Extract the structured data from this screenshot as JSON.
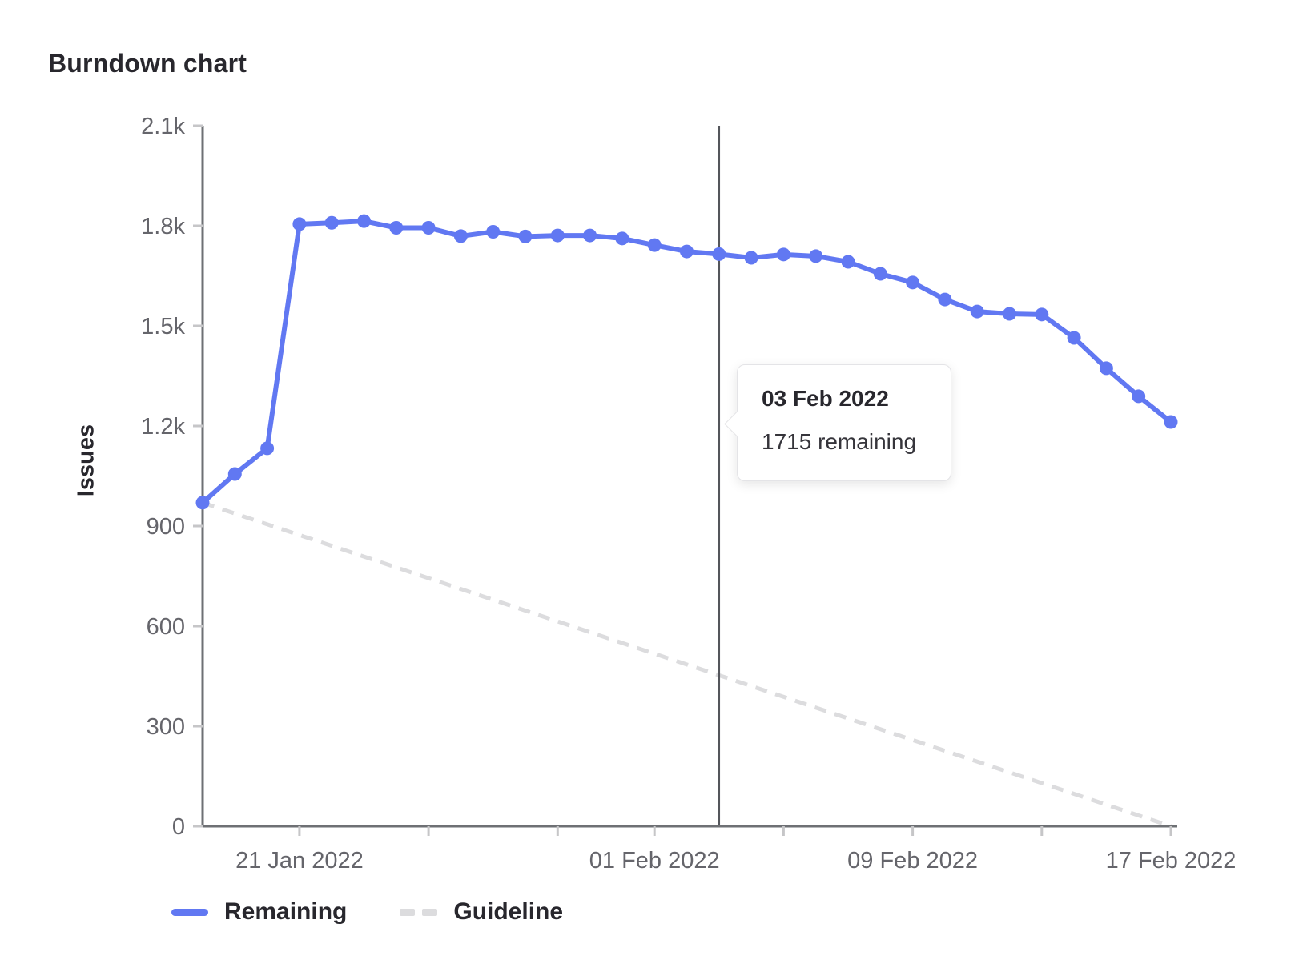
{
  "title": "Burndown chart",
  "chart_data": {
    "type": "line",
    "title": "Burndown chart",
    "xlabel": "",
    "ylabel": "Issues",
    "ylim": [
      0,
      2100
    ],
    "grid": false,
    "legend_position": "bottom",
    "ytick_values": [
      0,
      300,
      600,
      900,
      1200,
      1500,
      1800,
      2100
    ],
    "ytick_labels": [
      "0",
      "300",
      "600",
      "900",
      "1.2k",
      "1.5k",
      "1.8k",
      "2.1k"
    ],
    "x": [
      "18 Jan",
      "19 Jan",
      "20 Jan",
      "21 Jan",
      "22 Jan",
      "23 Jan",
      "24 Jan",
      "25 Jan",
      "26 Jan",
      "27 Jan",
      "28 Jan",
      "29 Jan",
      "30 Jan",
      "31 Jan",
      "01 Feb",
      "02 Feb",
      "03 Feb",
      "04 Feb",
      "05 Feb",
      "06 Feb",
      "07 Feb",
      "08 Feb",
      "09 Feb",
      "10 Feb",
      "11 Feb",
      "12 Feb",
      "13 Feb",
      "14 Feb",
      "15 Feb",
      "16 Feb",
      "17 Feb"
    ],
    "xticks": [
      {
        "index": 3,
        "label": "21 Jan 2022"
      },
      {
        "index": 7,
        "label": ""
      },
      {
        "index": 11,
        "label": ""
      },
      {
        "index": 14,
        "label": "01 Feb 2022"
      },
      {
        "index": 18,
        "label": ""
      },
      {
        "index": 22,
        "label": "09 Feb 2022"
      },
      {
        "index": 26,
        "label": ""
      },
      {
        "index": 30,
        "label": "17 Feb 2022"
      }
    ],
    "series": [
      {
        "name": "Remaining",
        "style": "solid",
        "color": "#6178f2",
        "values": [
          970,
          1056,
          1133,
          1805,
          1809,
          1814,
          1794,
          1794,
          1769,
          1782,
          1768,
          1771,
          1771,
          1762,
          1742,
          1723,
          1715,
          1704,
          1714,
          1709,
          1692,
          1656,
          1630,
          1579,
          1543,
          1536,
          1534,
          1464,
          1373,
          1289,
          1212
        ]
      },
      {
        "name": "Guideline",
        "style": "dashed",
        "color": "#dcdcde",
        "start": 970,
        "end": 0
      }
    ],
    "marker": {
      "index": 16,
      "color": "#54565b"
    },
    "tooltip": {
      "title": "03 Feb 2022",
      "body": "1715 remaining"
    }
  },
  "legend": {
    "items": [
      {
        "label": "Remaining",
        "color": "#6178f2",
        "style": "solid"
      },
      {
        "label": "Guideline",
        "color": "#dcdcde",
        "style": "dashed"
      }
    ]
  },
  "colors": {
    "axis": "#6e7074",
    "tick": "#c6c6c8",
    "tick_text": "#65656b",
    "title_text": "#28272d"
  }
}
